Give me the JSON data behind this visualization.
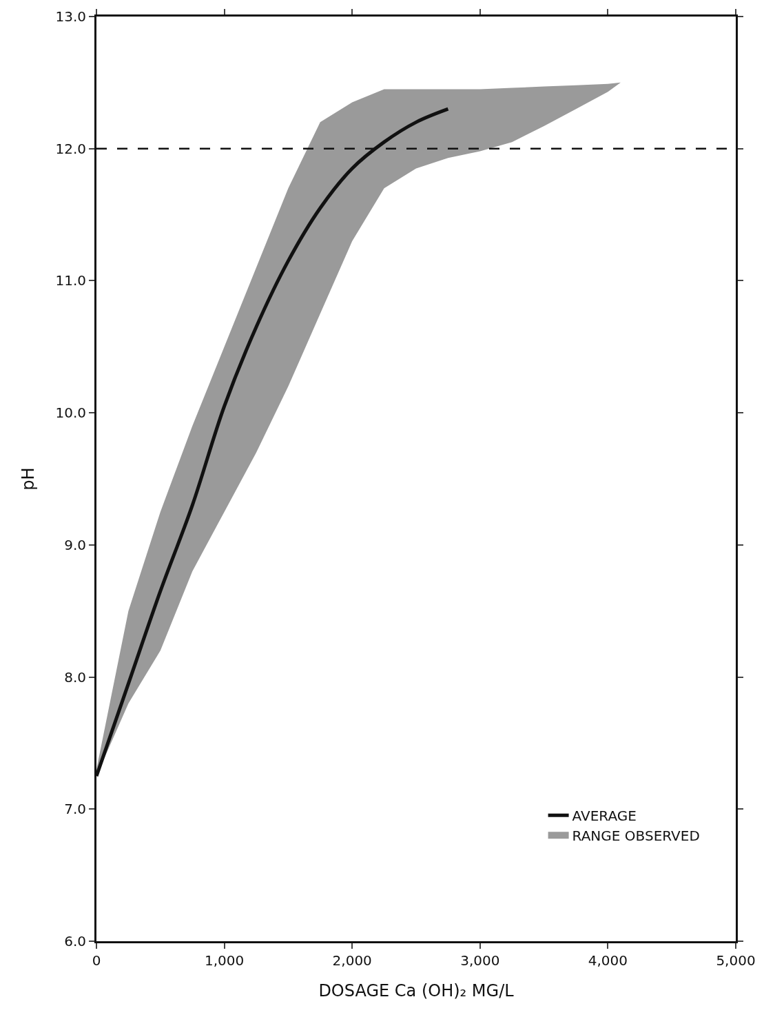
{
  "chart_data": {
    "type": "line",
    "xlabel": "DOSAGE Ca (OH)₂ MG/L",
    "ylabel": "pH",
    "x": [
      0,
      250,
      500,
      750,
      1000,
      1250,
      1500,
      1750,
      2000,
      2250,
      2500,
      2750,
      3000,
      3250,
      3500,
      3750,
      4000,
      4100
    ],
    "series": [
      {
        "name": "AVERAGE",
        "color": "#111111",
        "values": [
          7.25,
          7.95,
          8.65,
          9.3,
          10.05,
          10.65,
          11.15,
          11.55,
          11.85,
          12.05,
          12.2,
          12.3,
          null,
          null,
          null,
          null,
          null,
          null
        ],
        "lower": [
          7.25,
          7.8,
          8.2,
          8.8,
          9.25,
          9.7,
          10.2,
          10.75,
          11.3,
          11.7,
          11.85,
          11.93,
          11.98,
          12.05,
          12.17,
          12.3,
          12.43,
          12.5
        ],
        "upper": [
          7.3,
          8.5,
          9.25,
          9.9,
          10.5,
          11.1,
          11.7,
          12.2,
          12.35,
          12.45,
          12.45,
          12.45,
          12.45,
          12.46,
          12.47,
          12.48,
          12.49,
          12.5
        ]
      }
    ],
    "annotations": [
      "RANGE OBSERVED"
    ],
    "ref_lines": [
      {
        "axis": "y",
        "value": 12,
        "color": "#111111",
        "line_style": "dashed"
      }
    ],
    "xlim": [
      0,
      5000
    ],
    "xticks": [
      0,
      {
        "value": 1000,
        "label": "1,000"
      },
      {
        "value": 2000,
        "label": "2,000"
      },
      {
        "value": 3000,
        "label": "3,000"
      },
      {
        "value": 4000,
        "label": "4,000"
      },
      {
        "value": 5000,
        "label": "5,000"
      }
    ],
    "ylim": [
      6,
      13
    ],
    "yticks": [
      {
        "value": 6,
        "label": "6.0"
      },
      {
        "value": 7,
        "label": "7.0"
      },
      {
        "value": 8,
        "label": "8.0"
      },
      {
        "value": 9,
        "label": "9.0"
      },
      {
        "value": 10,
        "label": "10.0"
      },
      {
        "value": 11,
        "label": "11.0"
      },
      {
        "value": 12,
        "label": "12.0"
      },
      {
        "value": 13,
        "label": "13.0"
      }
    ],
    "grid": false,
    "legend": "bottom right"
  }
}
